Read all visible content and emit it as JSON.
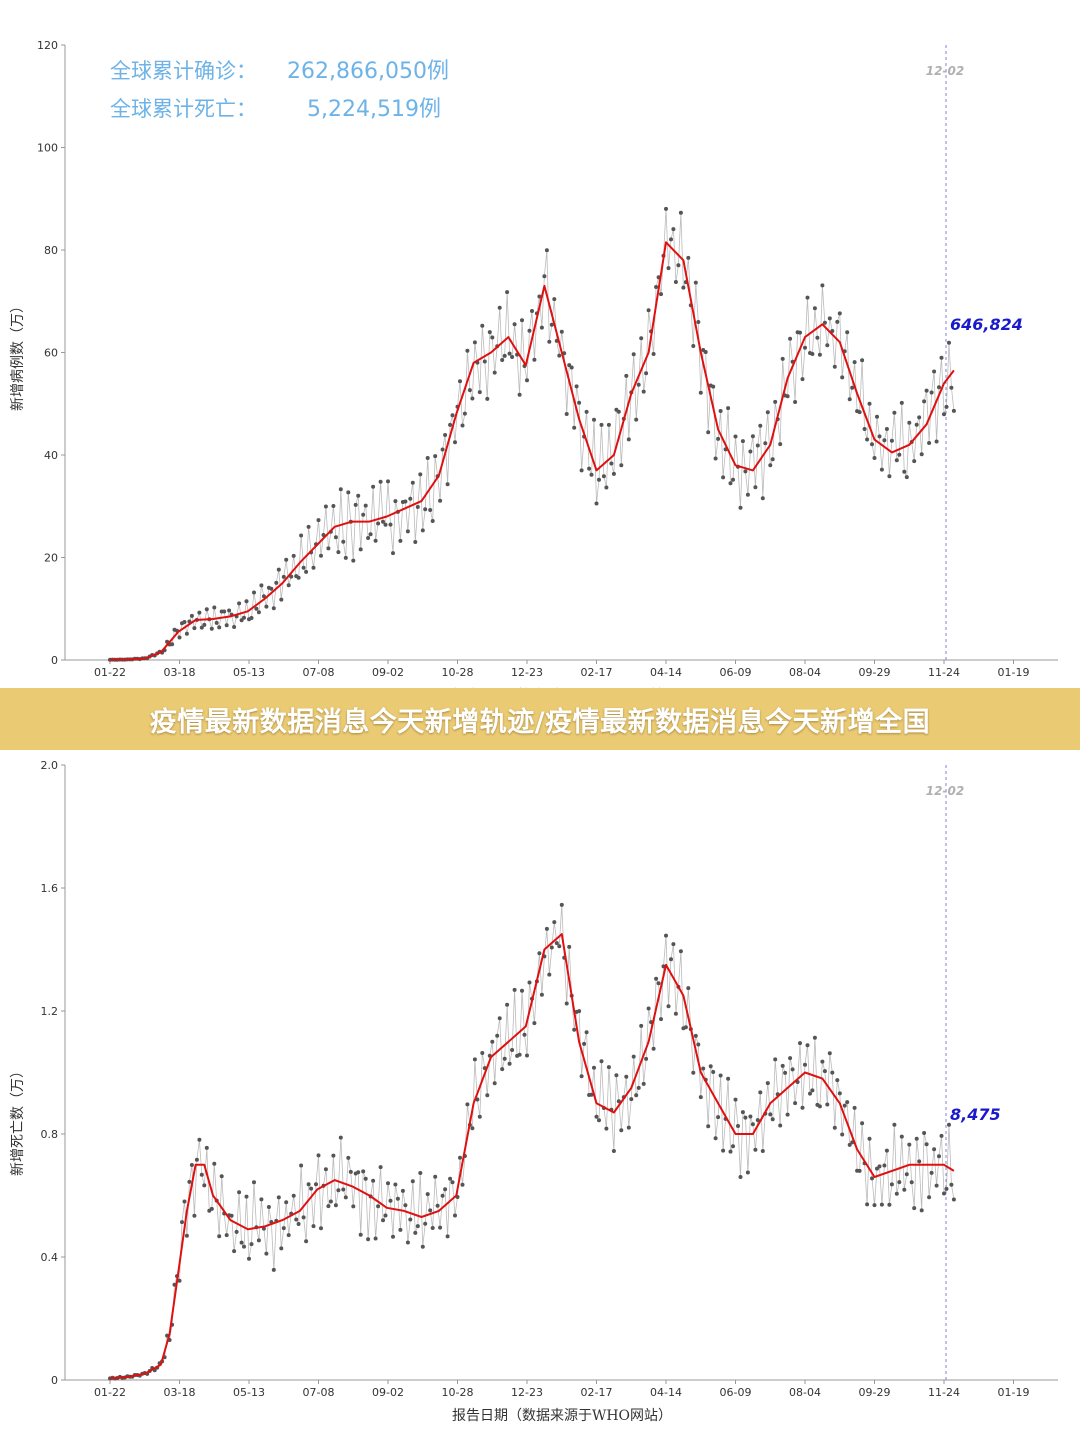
{
  "banner": {
    "title": "疫情最新数据消息今天新增轨迹/疫情最新数据消息今天新增全国"
  },
  "colors": {
    "smooth_line": "#e01010",
    "daily_line": "#bbbbbb",
    "daily_dot": "#555555",
    "stats_text": "#6db3e8",
    "end_value": "#1a1acc",
    "date_marker": "#8080d0",
    "banner_bg": "#eaca73"
  },
  "chart_data": [
    {
      "type": "line",
      "stats": [
        {
          "label": "全球累计确诊：",
          "value": "262,866,050例"
        },
        {
          "label": "全球累计死亡：",
          "value": "5,224,519例"
        }
      ],
      "ylabel": "新增病例数（万）",
      "xlabel": "报告日期（数据来源于WHO网站）",
      "ylim": [
        0,
        120
      ],
      "yticks": [
        "0",
        "20",
        "40",
        "60",
        "80",
        "100",
        "120"
      ],
      "xticks": [
        "01-22",
        "03-18",
        "05-13",
        "07-08",
        "09-02",
        "10-28",
        "12-23",
        "02-17",
        "04-14",
        "06-09",
        "08-04",
        "09-29",
        "11-24",
        "01-19"
      ],
      "marker_date": "12-02",
      "end_value": "646,824",
      "series": [
        {
          "x": [
            "01-22",
            "02-05",
            "02-19",
            "03-04",
            "03-18",
            "04-01",
            "04-15",
            "04-29",
            "05-13",
            "05-27",
            "06-10",
            "06-24",
            "07-08",
            "07-22",
            "08-05",
            "08-19",
            "09-02",
            "09-16",
            "09-30",
            "10-14",
            "10-28",
            "11-11",
            "11-25",
            "12-09",
            "12-23",
            "01-06",
            "01-20",
            "02-03",
            "02-17",
            "03-03",
            "03-17",
            "03-31",
            "04-14",
            "04-28",
            "05-12",
            "05-26",
            "06-09",
            "06-23",
            "07-07",
            "07-21",
            "08-04",
            "08-18",
            "09-01",
            "09-15",
            "09-29",
            "10-13",
            "10-27",
            "11-10",
            "11-24",
            "12-02"
          ],
          "values": [
            0.05,
            0.1,
            0.3,
            1.5,
            5.5,
            7.8,
            8.0,
            8.5,
            9.5,
            12.0,
            15.0,
            19.0,
            22.5,
            26.0,
            27.0,
            27.0,
            28.0,
            29.5,
            31.0,
            36.0,
            48.0,
            58.0,
            60.0,
            63.0,
            57.5,
            73.0,
            60.0,
            47.0,
            37.0,
            40.0,
            52.0,
            60.0,
            81.5,
            78.0,
            60.0,
            45.0,
            38.0,
            37.0,
            42.0,
            55.0,
            63.0,
            65.5,
            62.0,
            52.0,
            43.0,
            40.5,
            42.0,
            46.0,
            54.0,
            56.5
          ]
        }
      ]
    },
    {
      "type": "line",
      "ylabel": "新增死亡数（万）",
      "xlabel": "报告日期（数据来源于WHO网站）",
      "ylim": [
        0,
        2.0
      ],
      "yticks": [
        "0",
        "0.4",
        "0.8",
        "1.2",
        "1.6",
        "2.0"
      ],
      "xticks": [
        "01-22",
        "03-18",
        "05-13",
        "07-08",
        "09-02",
        "10-28",
        "12-23",
        "02-17",
        "04-14",
        "06-09",
        "08-04",
        "09-29",
        "11-24",
        "01-19"
      ],
      "marker_date": "12-02",
      "end_value": "8,475",
      "series": [
        {
          "x": [
            "01-22",
            "02-05",
            "02-19",
            "03-04",
            "03-11",
            "03-18",
            "03-25",
            "04-01",
            "04-08",
            "04-15",
            "04-29",
            "05-13",
            "05-27",
            "06-10",
            "06-24",
            "07-08",
            "07-22",
            "08-05",
            "08-19",
            "09-02",
            "09-16",
            "09-30",
            "10-14",
            "10-28",
            "11-11",
            "11-25",
            "12-09",
            "12-23",
            "01-06",
            "01-20",
            "02-03",
            "02-17",
            "03-03",
            "03-17",
            "03-31",
            "04-14",
            "04-28",
            "05-12",
            "05-26",
            "06-09",
            "06-23",
            "07-07",
            "07-21",
            "08-04",
            "08-18",
            "09-01",
            "09-15",
            "09-29",
            "10-13",
            "10-27",
            "11-10",
            "11-24",
            "12-02"
          ],
          "values": [
            0.005,
            0.01,
            0.02,
            0.05,
            0.15,
            0.35,
            0.55,
            0.7,
            0.7,
            0.6,
            0.52,
            0.49,
            0.5,
            0.52,
            0.55,
            0.62,
            0.65,
            0.63,
            0.6,
            0.56,
            0.55,
            0.53,
            0.55,
            0.6,
            0.9,
            1.05,
            1.1,
            1.15,
            1.4,
            1.45,
            1.1,
            0.9,
            0.87,
            0.95,
            1.1,
            1.35,
            1.25,
            1.0,
            0.9,
            0.8,
            0.8,
            0.9,
            0.95,
            1.0,
            0.98,
            0.9,
            0.75,
            0.66,
            0.68,
            0.7,
            0.7,
            0.7,
            0.68
          ]
        }
      ]
    }
  ]
}
